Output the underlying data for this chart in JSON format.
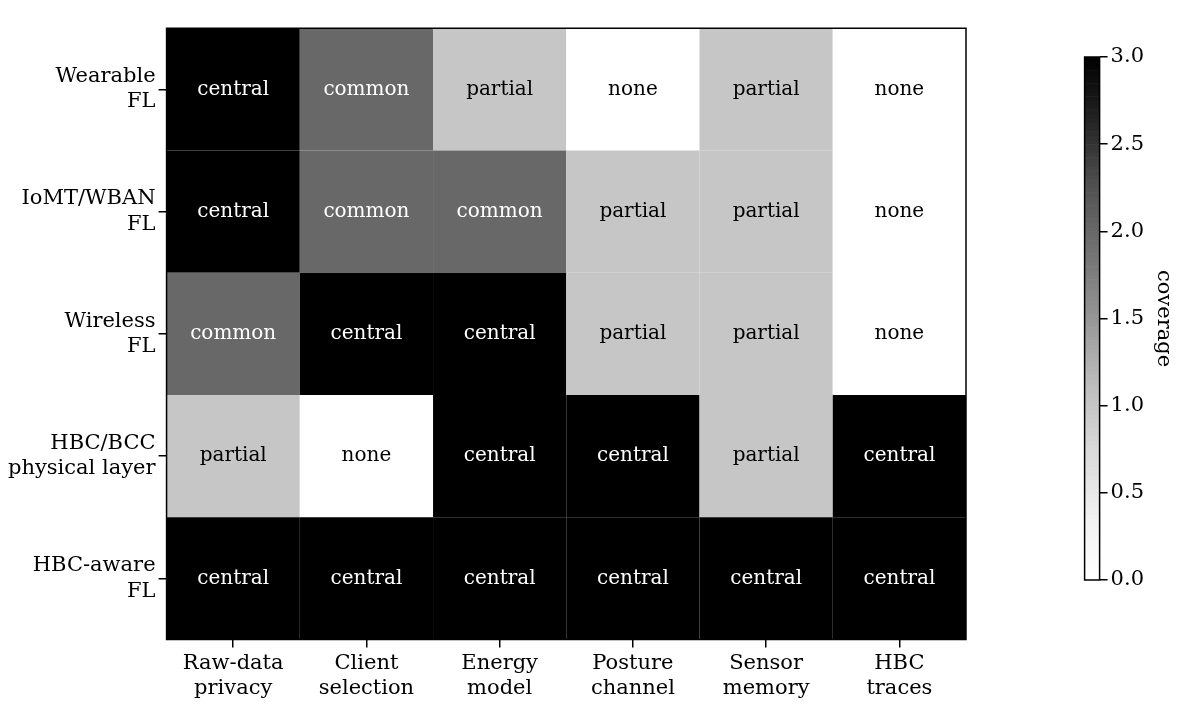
{
  "chart_data": {
    "type": "heatmap",
    "categories": [
      "Raw-data\nprivacy",
      "Client\nselection",
      "Energy\nmodel",
      "Posture\nchannel",
      "Sensor\nmemory",
      "HBC\ntraces"
    ],
    "y_categories": [
      "Wearable\nFL",
      "IoMT/WBAN\nFL",
      "Wireless\nFL",
      "HBC/BCC\nphysical layer",
      "HBC-aware\nFL"
    ],
    "cells": [
      [
        3,
        2,
        1,
        0,
        1,
        0
      ],
      [
        3,
        2,
        2,
        1,
        1,
        0
      ],
      [
        2,
        3,
        3,
        1,
        1,
        0
      ],
      [
        1,
        0,
        3,
        3,
        1,
        3
      ],
      [
        3,
        3,
        3,
        3,
        3,
        3
      ]
    ],
    "cell_labels": [
      [
        "central",
        "common",
        "partial",
        "none",
        "partial",
        "none"
      ],
      [
        "central",
        "common",
        "common",
        "partial",
        "partial",
        "none"
      ],
      [
        "common",
        "central",
        "central",
        "partial",
        "partial",
        "none"
      ],
      [
        "partial",
        "none",
        "central",
        "central",
        "partial",
        "central"
      ],
      [
        "central",
        "central",
        "central",
        "central",
        "central",
        "central"
      ]
    ],
    "clim": [
      0,
      3
    ],
    "cticks": [
      {
        "value": 0,
        "label": "0.0"
      },
      0.5,
      {
        "value": 1,
        "label": "1.0"
      },
      1.5,
      {
        "value": 2,
        "label": "2.0"
      },
      2.5,
      {
        "value": 3,
        "label": "3.0"
      }
    ],
    "clabel": "coverage"
  }
}
